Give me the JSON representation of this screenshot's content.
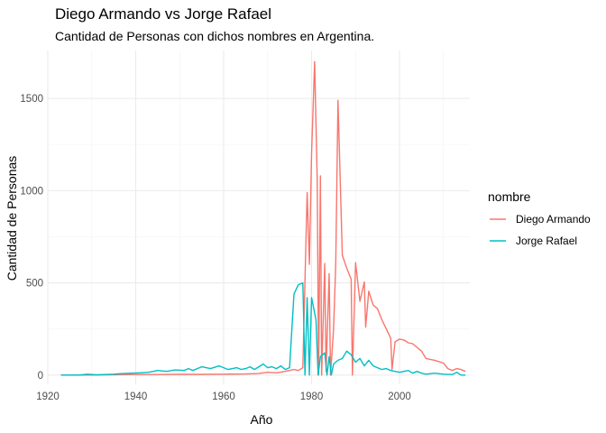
{
  "chart_data": {
    "type": "line",
    "title": "Diego Armando vs Jorge Rafael",
    "subtitle": "Cantidad de Personas con dichos nombres en Argentina.",
    "xlabel": "Año",
    "ylabel": "Cantidad de Personas",
    "xlim": [
      1920,
      2016
    ],
    "ylim": [
      -50,
      1760
    ],
    "x_ticks": [
      1920,
      1940,
      1960,
      1980,
      2000
    ],
    "y_ticks": [
      0,
      500,
      1000,
      1500
    ],
    "grid": true,
    "legend_title": "nombre",
    "legend_position": "right",
    "series": [
      {
        "name": "Diego Armando",
        "color": "#F8766D",
        "points": [
          [
            1923,
            0
          ],
          [
            1926,
            0
          ],
          [
            1930,
            0
          ],
          [
            1935,
            2
          ],
          [
            1940,
            3
          ],
          [
            1945,
            3
          ],
          [
            1950,
            4
          ],
          [
            1955,
            4
          ],
          [
            1960,
            5
          ],
          [
            1965,
            6
          ],
          [
            1968,
            8
          ],
          [
            1970,
            15
          ],
          [
            1972,
            12
          ],
          [
            1974,
            20
          ],
          [
            1976,
            30
          ],
          [
            1977,
            25
          ],
          [
            1978,
            40
          ],
          [
            1979,
            990
          ],
          [
            1979.5,
            600
          ],
          [
            1980,
            1200
          ],
          [
            1980.7,
            1700
          ],
          [
            1981.3,
            1050
          ],
          [
            1981.6,
            0
          ],
          [
            1982,
            1080
          ],
          [
            1982.3,
            0
          ],
          [
            1983,
            605
          ],
          [
            1983.3,
            20
          ],
          [
            1984,
            550
          ],
          [
            1984.3,
            0
          ],
          [
            1985,
            250
          ],
          [
            1985.5,
            600
          ],
          [
            1986,
            1490
          ],
          [
            1987,
            650
          ],
          [
            1988,
            580
          ],
          [
            1989,
            520
          ],
          [
            1989.3,
            0
          ],
          [
            1990,
            610
          ],
          [
            1991,
            400
          ],
          [
            1992,
            505
          ],
          [
            1992.3,
            260
          ],
          [
            1993,
            455
          ],
          [
            1994,
            380
          ],
          [
            1995,
            360
          ],
          [
            1996,
            300
          ],
          [
            1997,
            250
          ],
          [
            1998,
            200
          ],
          [
            1998.3,
            30
          ],
          [
            1999,
            180
          ],
          [
            2000,
            195
          ],
          [
            2001,
            190
          ],
          [
            2002,
            175
          ],
          [
            2003,
            170
          ],
          [
            2004,
            150
          ],
          [
            2005,
            130
          ],
          [
            2006,
            90
          ],
          [
            2008,
            80
          ],
          [
            2010,
            65
          ],
          [
            2011,
            35
          ],
          [
            2012,
            25
          ],
          [
            2013,
            35
          ],
          [
            2014,
            30
          ],
          [
            2015,
            20
          ]
        ]
      },
      {
        "name": "Jorge Rafael",
        "color": "#00BFC4",
        "points": [
          [
            1923,
            0
          ],
          [
            1925,
            0
          ],
          [
            1927,
            0
          ],
          [
            1929,
            5
          ],
          [
            1931,
            2
          ],
          [
            1933,
            3
          ],
          [
            1935,
            5
          ],
          [
            1937,
            8
          ],
          [
            1939,
            10
          ],
          [
            1941,
            12
          ],
          [
            1943,
            15
          ],
          [
            1945,
            25
          ],
          [
            1947,
            20
          ],
          [
            1949,
            28
          ],
          [
            1951,
            25
          ],
          [
            1952,
            35
          ],
          [
            1953,
            25
          ],
          [
            1955,
            45
          ],
          [
            1957,
            35
          ],
          [
            1959,
            50
          ],
          [
            1961,
            30
          ],
          [
            1963,
            40
          ],
          [
            1964,
            30
          ],
          [
            1965,
            35
          ],
          [
            1966,
            45
          ],
          [
            1967,
            30
          ],
          [
            1968,
            45
          ],
          [
            1969,
            60
          ],
          [
            1970,
            40
          ],
          [
            1971,
            45
          ],
          [
            1972,
            35
          ],
          [
            1973,
            50
          ],
          [
            1974,
            30
          ],
          [
            1975,
            40
          ],
          [
            1976,
            440
          ],
          [
            1977,
            490
          ],
          [
            1978,
            500
          ],
          [
            1978.5,
            0
          ],
          [
            1979,
            420
          ],
          [
            1979.5,
            0
          ],
          [
            1980,
            420
          ],
          [
            1981,
            300
          ],
          [
            1981.5,
            0
          ],
          [
            1982,
            100
          ],
          [
            1983,
            120
          ],
          [
            1983.5,
            0
          ],
          [
            1984,
            100
          ],
          [
            1984.5,
            0
          ],
          [
            1985,
            60
          ],
          [
            1986,
            80
          ],
          [
            1987,
            90
          ],
          [
            1988,
            130
          ],
          [
            1989,
            110
          ],
          [
            1990,
            70
          ],
          [
            1991,
            90
          ],
          [
            1992,
            50
          ],
          [
            1993,
            80
          ],
          [
            1994,
            50
          ],
          [
            1995,
            40
          ],
          [
            1996,
            30
          ],
          [
            1997,
            35
          ],
          [
            1998,
            25
          ],
          [
            1999,
            20
          ],
          [
            2000,
            15
          ],
          [
            2001,
            20
          ],
          [
            2002,
            25
          ],
          [
            2003,
            10
          ],
          [
            2004,
            20
          ],
          [
            2005,
            10
          ],
          [
            2006,
            5
          ],
          [
            2008,
            10
          ],
          [
            2010,
            5
          ],
          [
            2012,
            3
          ],
          [
            2013,
            15
          ],
          [
            2014,
            0
          ],
          [
            2015,
            0
          ]
        ]
      }
    ]
  }
}
